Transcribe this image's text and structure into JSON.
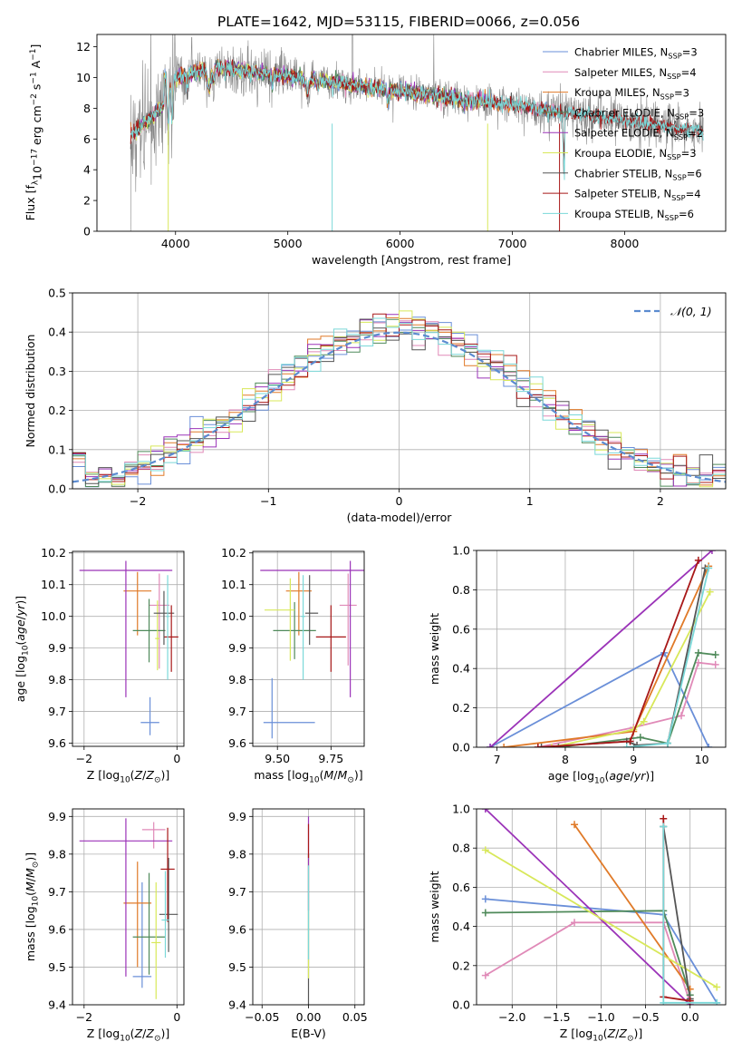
{
  "title": "PLATE=1642, MJD=53115, FIBERID=0066, z=0.056",
  "colors": {
    "chabrier_miles": "#6a8fd8",
    "salpeter_miles": "#e08ab8",
    "kroupa_miles": "#e07a28",
    "chabrier_elodie": "#4f8a5a",
    "salpeter_elodie": "#9b33b8",
    "kroupa_elodie": "#d8e85a",
    "chabrier_stelib": "#555555",
    "salpeter_stelib": "#a81818",
    "kroupa_stelib": "#7ad8d8",
    "data": "#888888",
    "gaussian": "#5b8bd0"
  },
  "chart_data": [
    {
      "type": "line",
      "panel": "spectrum",
      "xlabel": "wavelength [Angstrom, rest frame]",
      "ylabel": "Flux [f$_\\lambda$10$^{-17}$ erg cm$^{-2}$ s$^{-1}$ A$^{-1}$]",
      "xlim": [
        3300,
        8900
      ],
      "ylim": [
        0,
        12.8
      ],
      "xticks": [
        "4000",
        "5000",
        "6000",
        "7000",
        "8000"
      ],
      "yticks": [
        "0",
        "2",
        "4",
        "6",
        "8",
        "10",
        "12"
      ],
      "legend_position": "upper right",
      "grid": false,
      "series": [
        {
          "name": "Chabrier MILES, N",
          "sub": "SSP",
          "suffix": "=3",
          "color_key": "chabrier_miles",
          "range": [
            3600,
            7420
          ]
        },
        {
          "name": "Salpeter MILES, N",
          "sub": "SSP",
          "suffix": "=4",
          "color_key": "salpeter_miles",
          "range": [
            3600,
            7420
          ]
        },
        {
          "name": "Kroupa MILES, N",
          "sub": "SSP",
          "suffix": "=3",
          "color_key": "kroupa_miles",
          "range": [
            3600,
            7420
          ]
        },
        {
          "name": "Chabrier ELODIE, N",
          "sub": "SSP",
          "suffix": "=3",
          "color_key": "chabrier_elodie",
          "range": [
            3650,
            6780
          ]
        },
        {
          "name": "Salpeter ELODIE, N",
          "sub": "SSP",
          "suffix": "=2",
          "color_key": "salpeter_elodie",
          "range": [
            3650,
            6780
          ]
        },
        {
          "name": "Kroupa ELODIE, N",
          "sub": "SSP",
          "suffix": "=3",
          "color_key": "kroupa_elodie",
          "range": [
            3650,
            6780
          ]
        },
        {
          "name": "Chabrier STELIB, N",
          "sub": "SSP",
          "suffix": "=6",
          "color_key": "chabrier_stelib",
          "range": [
            3600,
            8700
          ]
        },
        {
          "name": "Salpeter STELIB, N",
          "sub": "SSP",
          "suffix": "=4",
          "color_key": "salpeter_stelib",
          "range": [
            3600,
            8700
          ]
        },
        {
          "name": "Kroupa STELIB, N",
          "sub": "SSP",
          "suffix": "=6",
          "color_key": "kroupa_stelib",
          "range": [
            3600,
            8700
          ]
        }
      ]
    },
    {
      "type": "histogram",
      "panel": "residuals",
      "xlabel": "(data-model)/error",
      "ylabel": "Normed distribution",
      "xlim": [
        -2.5,
        2.5
      ],
      "ylim": [
        0,
        0.5
      ],
      "xticks": [
        "−2",
        "−1",
        "0",
        "1",
        "2"
      ],
      "yticks": [
        "0.0",
        "0.1",
        "0.2",
        "0.3",
        "0.4",
        "0.5"
      ],
      "grid": true,
      "legend_position": "upper right",
      "gaussian_label": "𝒩(0, 1)",
      "bin_width": 0.1,
      "bin_start": -2.5
    },
    {
      "type": "errorbar",
      "panel": "age-vs-Z",
      "xlabel": "Z [log₁₀(Z/Z☉)]",
      "ylabel": "age  [log₁₀(age/yr)]",
      "xlim": [
        -2.25,
        0.15
      ],
      "ylim": [
        9.59,
        10.205
      ],
      "xticks": [
        "−2",
        "0"
      ],
      "yticks": [
        "9.6",
        "9.7",
        "9.8",
        "9.9",
        "10.0",
        "10.1",
        "10.2"
      ],
      "grid": true,
      "points": [
        {
          "color_key": "chabrier_miles",
          "x": -0.58,
          "xerr": 0.2,
          "y": 9.665,
          "yerr": [
            0.04,
            0.08
          ]
        },
        {
          "color_key": "salpeter_miles",
          "x": -0.38,
          "xerr": 0.22,
          "y": 10.035,
          "yerr": [
            0.2,
            0.1
          ]
        },
        {
          "color_key": "kroupa_miles",
          "x": -0.85,
          "xerr": 0.3,
          "y": 10.08,
          "yerr": [
            0.14,
            0.06
          ]
        },
        {
          "color_key": "chabrier_elodie",
          "x": -0.6,
          "xerr": 0.35,
          "y": 9.955,
          "yerr": [
            0.1,
            0.1
          ]
        },
        {
          "color_key": "salpeter_elodie",
          "x": -1.1,
          "xerr": 1.0,
          "y": 10.145,
          "yerr": [
            0.4,
            0.03
          ]
        },
        {
          "color_key": "kroupa_elodie",
          "x": -0.42,
          "xerr": 0.05,
          "y": 9.93,
          "yerr": [
            0.1,
            0.12
          ]
        },
        {
          "color_key": "chabrier_stelib",
          "x": -0.28,
          "xerr": 0.22,
          "y": 10.01,
          "yerr": [
            0.1,
            0.07
          ]
        },
        {
          "color_key": "salpeter_stelib",
          "x": -0.12,
          "xerr": 0.15,
          "y": 9.935,
          "yerr": [
            0.11,
            0.1
          ]
        },
        {
          "color_key": "kroupa_stelib",
          "x": -0.2,
          "xerr": 0.03,
          "y": 10.0,
          "yerr": [
            0.2,
            0.13
          ]
        }
      ]
    },
    {
      "type": "errorbar",
      "panel": "age-vs-mass",
      "xlabel": "mass [log₁₀(M/M☉)]",
      "ylabel": "",
      "xlim": [
        9.385,
        9.905
      ],
      "ylim": [
        9.59,
        10.205
      ],
      "xticks": [
        "9.50",
        "9.75"
      ],
      "yticks": [
        "9.6",
        "9.7",
        "9.8",
        "9.9",
        "10.0",
        "10.1",
        "10.2"
      ],
      "grid": true,
      "points": [
        {
          "color_key": "chabrier_miles",
          "x": 9.475,
          "xerr": [
            0.04,
            0.2
          ],
          "y": 9.665,
          "yerr": [
            0.05,
            0.14
          ]
        },
        {
          "color_key": "salpeter_miles",
          "x": 9.83,
          "xerr": 0.04,
          "y": 10.035,
          "yerr": [
            0.19,
            0.1
          ]
        },
        {
          "color_key": "kroupa_miles",
          "x": 9.6,
          "xerr": 0.06,
          "y": 10.08,
          "yerr": [
            0.14,
            0.06
          ]
        },
        {
          "color_key": "chabrier_elodie",
          "x": 9.58,
          "xerr": 0.1,
          "y": 9.955,
          "yerr": [
            0.09,
            0.09
          ]
        },
        {
          "color_key": "salpeter_elodie",
          "x": 9.84,
          "xerr": 0.42,
          "y": 10.145,
          "yerr": [
            0.4,
            0.03
          ]
        },
        {
          "color_key": "kroupa_elodie",
          "x": 9.56,
          "xerr": [
            0.12,
            0.02
          ],
          "y": 10.02,
          "yerr": [
            0.16,
            0.1
          ]
        },
        {
          "color_key": "chabrier_stelib",
          "x": 9.65,
          "xerr": [
            0.02,
            0.04
          ],
          "y": 10.01,
          "yerr": [
            0.1,
            0.12
          ]
        },
        {
          "color_key": "salpeter_stelib",
          "x": 9.75,
          "xerr": 0.07,
          "y": 9.935,
          "yerr": [
            0.11,
            0.1
          ]
        },
        {
          "color_key": "kroupa_stelib",
          "x": 9.62,
          "xerr": 0.01,
          "y": 10.0,
          "yerr": [
            0.2,
            0.13
          ]
        }
      ]
    },
    {
      "type": "line",
      "panel": "mass-weight-vs-age",
      "xlabel": "age  [log₁₀(age/yr)]",
      "ylabel": "mass weight",
      "xlim": [
        6.7,
        10.35
      ],
      "ylim": [
        0,
        1
      ],
      "xticks": [
        "7",
        "8",
        "9",
        "10"
      ],
      "yticks": [
        "0.0",
        "0.2",
        "0.4",
        "0.6",
        "0.8",
        "1.0"
      ],
      "grid": true,
      "series": [
        {
          "color_key": "chabrier_miles",
          "x": [
            6.9,
            9.45,
            10.1
          ],
          "y": [
            0.0,
            0.48,
            0.0
          ]
        },
        {
          "color_key": "salpeter_miles",
          "x": [
            7.6,
            9.0,
            9.7,
            9.95,
            10.2
          ],
          "y": [
            0.0,
            0.1,
            0.16,
            0.43,
            0.42
          ]
        },
        {
          "color_key": "kroupa_miles",
          "x": [
            7.1,
            9.0,
            10.1
          ],
          "y": [
            0.0,
            0.08,
            0.92
          ]
        },
        {
          "color_key": "chabrier_elodie",
          "x": [
            7.9,
            9.1,
            9.5,
            9.95,
            10.2
          ],
          "y": [
            0.0,
            0.05,
            0.02,
            0.48,
            0.47
          ]
        },
        {
          "color_key": "salpeter_elodie",
          "x": [
            6.9,
            10.15
          ],
          "y": [
            0.0,
            1.0
          ]
        },
        {
          "color_key": "kroupa_elodie",
          "x": [
            7.8,
            9.0,
            9.15,
            10.12
          ],
          "y": [
            0.0,
            0.09,
            0.13,
            0.79
          ]
        },
        {
          "color_key": "chabrier_stelib",
          "x": [
            7.65,
            8.9,
            9.05,
            9.5,
            10.05
          ],
          "y": [
            0.0,
            0.03,
            0.01,
            0.02,
            0.91
          ]
        },
        {
          "color_key": "salpeter_stelib",
          "x": [
            7.6,
            8.95,
            9.95
          ],
          "y": [
            0.0,
            0.03,
            0.95
          ]
        },
        {
          "color_key": "kroupa_stelib",
          "x": [
            8.9,
            9.5,
            10.1
          ],
          "y": [
            0.0,
            0.02,
            0.91
          ]
        }
      ]
    },
    {
      "type": "errorbar",
      "panel": "mass-vs-Z",
      "xlabel": "Z [log₁₀(Z/Z☉)]",
      "ylabel": "mass [log₁₀(M/M☉)]",
      "xlim": [
        -2.25,
        0.15
      ],
      "ylim": [
        9.4,
        9.92
      ],
      "xticks": [
        "−2",
        "0"
      ],
      "yticks": [
        "9.4",
        "9.5",
        "9.6",
        "9.7",
        "9.8",
        "9.9"
      ],
      "grid": true,
      "points": [
        {
          "color_key": "chabrier_miles",
          "x": -0.75,
          "xerr": 0.2,
          "y": 9.475,
          "yerr": [
            0.03,
            0.25
          ]
        },
        {
          "color_key": "salpeter_miles",
          "x": -0.5,
          "xerr": 0.25,
          "y": 9.865,
          "yerr": [
            0.05,
            0.02
          ]
        },
        {
          "color_key": "kroupa_miles",
          "x": -0.85,
          "xerr": 0.3,
          "y": 9.67,
          "yerr": [
            0.17,
            0.11
          ]
        },
        {
          "color_key": "chabrier_elodie",
          "x": -0.6,
          "xerr": 0.35,
          "y": 9.58,
          "yerr": [
            0.1,
            0.17
          ]
        },
        {
          "color_key": "salpeter_elodie",
          "x": -1.1,
          "xerr": 1.0,
          "y": 9.835,
          "yerr": [
            0.36,
            0.06
          ]
        },
        {
          "color_key": "kroupa_elodie",
          "x": -0.45,
          "xerr": 0.1,
          "y": 9.565,
          "yerr": [
            0.15,
            0.16
          ]
        },
        {
          "color_key": "chabrier_stelib",
          "x": -0.18,
          "xerr": 0.2,
          "y": 9.64,
          "yerr": [
            0.1,
            0.15
          ]
        },
        {
          "color_key": "salpeter_stelib",
          "x": -0.2,
          "xerr": 0.15,
          "y": 9.76,
          "yerr": [
            0.14,
            0.11
          ]
        },
        {
          "color_key": "kroupa_stelib",
          "x": -0.25,
          "xerr": 0.08,
          "y": 9.625,
          "yerr": [
            0.1,
            0.13
          ]
        }
      ]
    },
    {
      "type": "errorbar",
      "panel": "mass-vs-EBV",
      "xlabel": "E(B-V)",
      "ylabel": "",
      "xlim": [
        -0.06,
        0.06
      ],
      "ylim": [
        9.4,
        9.92
      ],
      "xticks": [
        "−0.05",
        "0.00",
        "0.05"
      ],
      "yticks": [
        "9.4",
        "9.5",
        "9.6",
        "9.7",
        "9.8",
        "9.9"
      ],
      "grid": true,
      "points": [
        {
          "color_key": "chabrier_stelib",
          "x": 0.0,
          "xerr": 0,
          "y": 9.6,
          "yerr": [
            0.2,
            0.2
          ]
        },
        {
          "color_key": "kroupa_elodie",
          "x": 0.0,
          "xerr": 0,
          "y": 9.55,
          "yerr": [
            0.08,
            0.25
          ]
        },
        {
          "color_key": "salpeter_elodie",
          "x": 0.0,
          "xerr": 0,
          "y": 9.75,
          "yerr": [
            0.1,
            0.15
          ]
        },
        {
          "color_key": "salpeter_stelib",
          "x": 0.0,
          "xerr": 0,
          "y": 9.82,
          "yerr": [
            0.03,
            0.06
          ]
        },
        {
          "color_key": "kroupa_stelib",
          "x": 0.0,
          "xerr": 0,
          "y": 9.62,
          "yerr": [
            0.1,
            0.15
          ]
        }
      ]
    },
    {
      "type": "line",
      "panel": "mass-weight-vs-Z",
      "xlabel": "Z [log₁₀(Z/Z☉)]",
      "ylabel": "mass weight",
      "xlim": [
        -2.4,
        0.4
      ],
      "ylim": [
        0,
        1
      ],
      "xticks": [
        "−2.0",
        "−1.5",
        "−1.0",
        "−0.5",
        "0.0"
      ],
      "yticks": [
        "0.0",
        "0.2",
        "0.4",
        "0.6",
        "0.8",
        "1.0"
      ],
      "grid": true,
      "series": [
        {
          "color_key": "chabrier_miles",
          "x": [
            -2.3,
            -0.3,
            0.3
          ],
          "y": [
            0.54,
            0.46,
            0.01
          ]
        },
        {
          "color_key": "salpeter_miles",
          "x": [
            -2.3,
            -1.3,
            -0.3,
            0.0
          ],
          "y": [
            0.15,
            0.42,
            0.42,
            0.01
          ]
        },
        {
          "color_key": "kroupa_miles",
          "x": [
            -1.3,
            0.0
          ],
          "y": [
            0.92,
            0.08
          ]
        },
        {
          "color_key": "chabrier_elodie",
          "x": [
            -2.3,
            -0.3,
            0.0
          ],
          "y": [
            0.47,
            0.48,
            0.05
          ]
        },
        {
          "color_key": "salpeter_elodie",
          "x": [
            -2.3,
            0.0
          ],
          "y": [
            1.0,
            0.0
          ]
        },
        {
          "color_key": "kroupa_elodie",
          "x": [
            -2.3,
            0.3
          ],
          "y": [
            0.79,
            0.09
          ]
        },
        {
          "color_key": "chabrier_stelib",
          "x": [
            -0.3,
            0.0
          ],
          "y": [
            0.91,
            0.03
          ]
        },
        {
          "color_key": "salpeter_stelib",
          "x": [
            -0.3,
            -0.3,
            0.0
          ],
          "y": [
            0.95,
            0.04,
            0.02
          ]
        },
        {
          "color_key": "kroupa_stelib",
          "x": [
            -0.3,
            -0.3,
            0.3
          ],
          "y": [
            0.91,
            0.01,
            0.01
          ]
        }
      ]
    }
  ]
}
